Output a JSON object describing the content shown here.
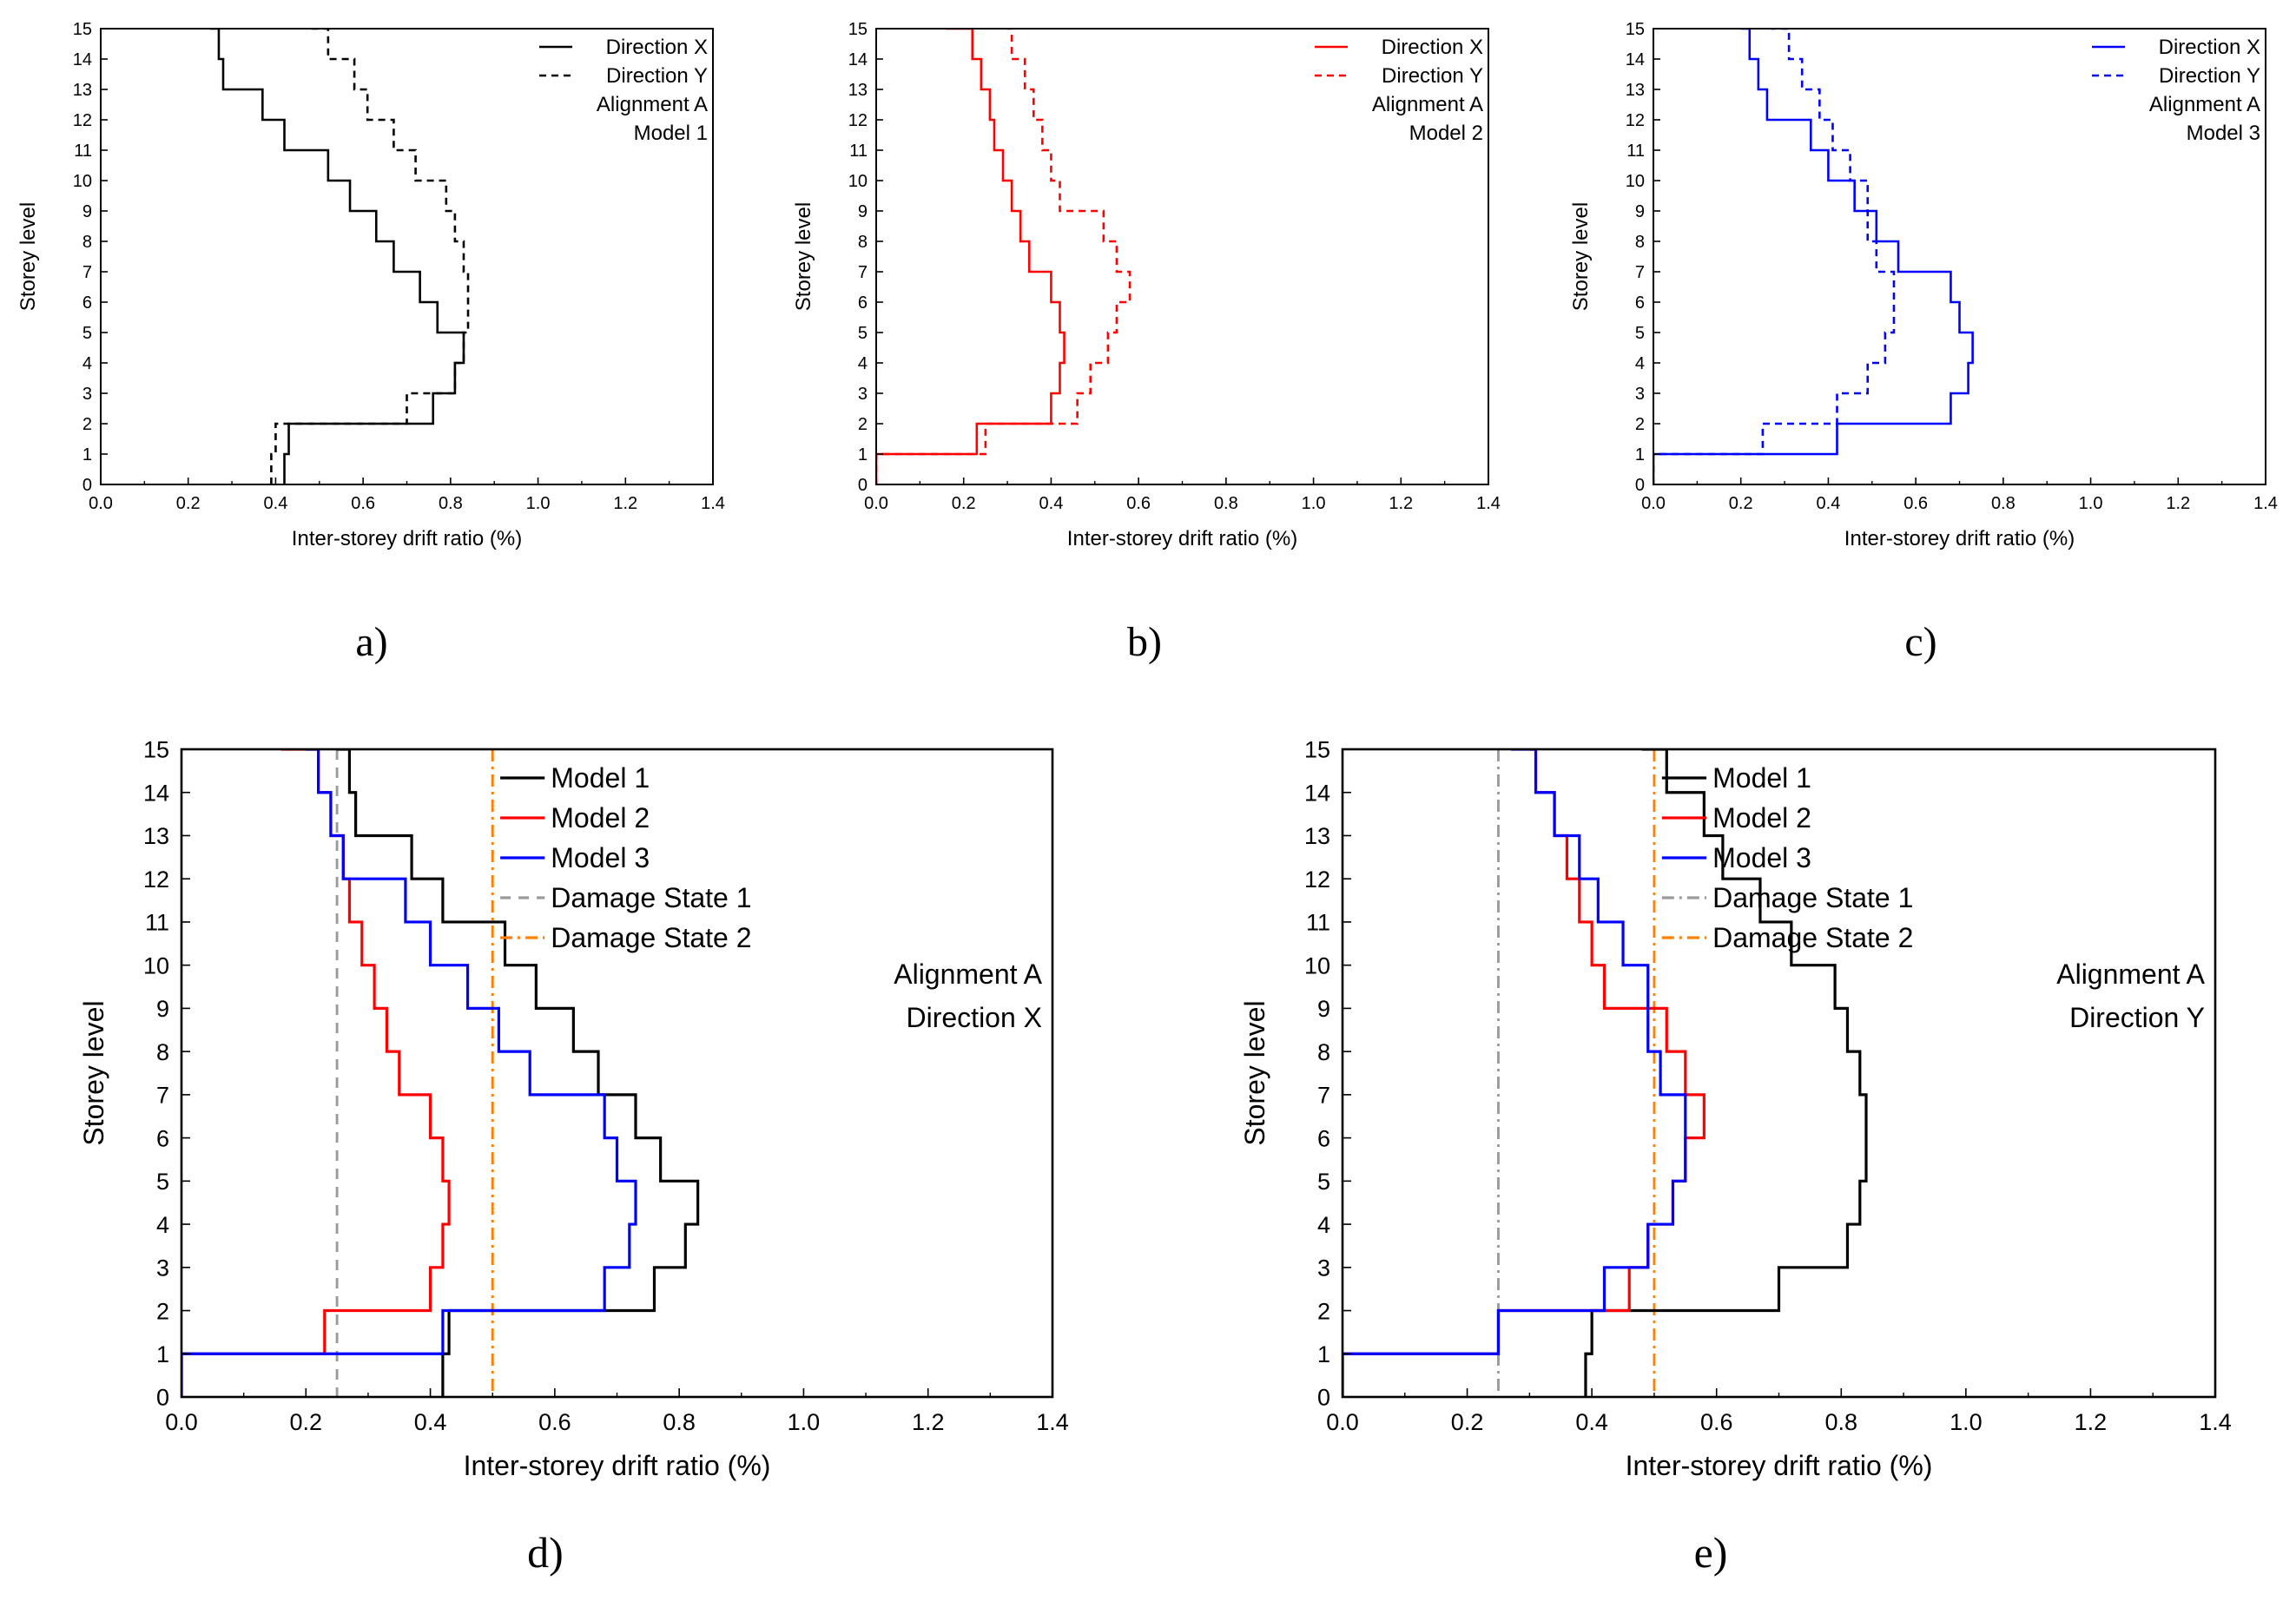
{
  "colors": {
    "black": "#000000",
    "red": "#ff0000",
    "blue": "#0000ff",
    "grey": "#9a9a9a",
    "orange": "#ff7f00"
  },
  "chart_data": [
    {
      "type": "line",
      "panel": "a",
      "caption": "a)",
      "xlabel": "Inter-storey drift ratio (%)",
      "ylabel": "Storey level",
      "xlim": [
        0,
        1.4
      ],
      "ylim": [
        0,
        15
      ],
      "xticks": [
        "0.0",
        "0.2",
        "0.4",
        "0.6",
        "0.8",
        "1.0",
        "1.2",
        "1.4"
      ],
      "yticks": [
        "0",
        "1",
        "2",
        "3",
        "4",
        "5",
        "6",
        "7",
        "8",
        "9",
        "10",
        "11",
        "12",
        "13",
        "14",
        "15"
      ],
      "grid": false,
      "legend_position": "top-right",
      "annotations": [
        "Alignment A",
        "Model 1"
      ],
      "series": [
        {
          "name": "Direction X",
          "color": "#000000",
          "style": "solid",
          "values": [
            0.43,
            0.76,
            0.81,
            0.83,
            0.77,
            0.73,
            0.67,
            0.63,
            0.57,
            0.52,
            0.42,
            0.37,
            0.28,
            0.27,
            0.25
          ],
          "start_x": 0.42
        },
        {
          "name": "Direction Y",
          "color": "#000000",
          "style": "dashed",
          "values": [
            0.4,
            0.7,
            0.81,
            0.83,
            0.84,
            0.84,
            0.83,
            0.81,
            0.79,
            0.72,
            0.67,
            0.61,
            0.58,
            0.52,
            0.48
          ],
          "start_x": 0.39
        }
      ]
    },
    {
      "type": "line",
      "panel": "b",
      "caption": "b)",
      "xlabel": "Inter-storey drift ratio (%)",
      "ylabel": "Storey level",
      "xlim": [
        0,
        1.4
      ],
      "ylim": [
        0,
        15
      ],
      "xticks": [
        "0.0",
        "0.2",
        "0.4",
        "0.6",
        "0.8",
        "1.0",
        "1.2",
        "1.4"
      ],
      "yticks": [
        "0",
        "1",
        "2",
        "3",
        "4",
        "5",
        "6",
        "7",
        "8",
        "9",
        "10",
        "11",
        "12",
        "13",
        "14",
        "15"
      ],
      "grid": false,
      "legend_position": "top-right",
      "annotations": [
        "Alignment A",
        "Model 2"
      ],
      "series": [
        {
          "name": "Direction X",
          "color": "#ff0000",
          "style": "solid",
          "values": [
            0.23,
            0.4,
            0.42,
            0.43,
            0.42,
            0.4,
            0.35,
            0.33,
            0.31,
            0.29,
            0.27,
            0.26,
            0.24,
            0.22,
            0.16
          ],
          "start_x": 0.0
        },
        {
          "name": "Direction Y",
          "color": "#ff0000",
          "style": "dashed",
          "values": [
            0.25,
            0.46,
            0.49,
            0.53,
            0.55,
            0.58,
            0.55,
            0.52,
            0.42,
            0.4,
            0.38,
            0.36,
            0.34,
            0.31,
            0.3
          ],
          "start_x": 0.0
        }
      ]
    },
    {
      "type": "line",
      "panel": "c",
      "caption": "c)",
      "xlabel": "Inter-storey drift ratio (%)",
      "ylabel": "Storey level",
      "xlim": [
        0,
        1.4
      ],
      "ylim": [
        0,
        15
      ],
      "xticks": [
        "0.0",
        "0.2",
        "0.4",
        "0.6",
        "0.8",
        "1.0",
        "1.2",
        "1.4"
      ],
      "yticks": [
        "0",
        "1",
        "2",
        "3",
        "4",
        "5",
        "6",
        "7",
        "8",
        "9",
        "10",
        "11",
        "12",
        "13",
        "14",
        "15"
      ],
      "grid": false,
      "legend_position": "top-right",
      "annotations": [
        "Alignment A",
        "Model 3"
      ],
      "series": [
        {
          "name": "Direction X",
          "color": "#0000ff",
          "style": "solid",
          "values": [
            0.42,
            0.68,
            0.72,
            0.73,
            0.7,
            0.68,
            0.56,
            0.51,
            0.46,
            0.4,
            0.36,
            0.26,
            0.24,
            0.22,
            0.2
          ],
          "start_x": 0.0
        },
        {
          "name": "Direction Y",
          "color": "#0000ff",
          "style": "dashed",
          "values": [
            0.25,
            0.42,
            0.49,
            0.53,
            0.55,
            0.55,
            0.51,
            0.49,
            0.49,
            0.45,
            0.41,
            0.38,
            0.34,
            0.31,
            0.27
          ],
          "start_x": 0.0
        }
      ]
    },
    {
      "type": "line",
      "panel": "d",
      "caption": "d)",
      "xlabel": "Inter-storey drift ratio (%)",
      "ylabel": "Storey level",
      "xlim": [
        0,
        1.4
      ],
      "ylim": [
        0,
        15
      ],
      "xticks": [
        "0.0",
        "0.2",
        "0.4",
        "0.6",
        "0.8",
        "1.0",
        "1.2",
        "1.4"
      ],
      "yticks": [
        "0",
        "1",
        "2",
        "3",
        "4",
        "5",
        "6",
        "7",
        "8",
        "9",
        "10",
        "11",
        "12",
        "13",
        "14",
        "15"
      ],
      "grid": false,
      "legend_position": "top-right",
      "annotations": [
        "Alignment A",
        "Direction X"
      ],
      "series": [
        {
          "name": "Model 1",
          "color": "#000000",
          "style": "solid",
          "values": [
            0.43,
            0.76,
            0.81,
            0.83,
            0.77,
            0.73,
            0.67,
            0.63,
            0.57,
            0.52,
            0.42,
            0.37,
            0.28,
            0.27,
            0.25
          ],
          "start_x": 0.42
        },
        {
          "name": "Model 2",
          "color": "#ff0000",
          "style": "solid",
          "values": [
            0.23,
            0.4,
            0.42,
            0.43,
            0.42,
            0.4,
            0.35,
            0.33,
            0.31,
            0.29,
            0.27,
            0.26,
            0.24,
            0.22,
            0.16
          ],
          "start_x": 0.0
        },
        {
          "name": "Model 3",
          "color": "#0000ff",
          "style": "solid",
          "values": [
            0.42,
            0.68,
            0.72,
            0.73,
            0.7,
            0.68,
            0.56,
            0.51,
            0.46,
            0.4,
            0.36,
            0.26,
            0.24,
            0.22,
            0.2
          ],
          "start_x": 0.0
        }
      ],
      "reference_lines": [
        {
          "name": "Damage State 1",
          "x": 0.25,
          "color": "#9a9a9a",
          "style": "dashed"
        },
        {
          "name": "Damage State 2",
          "x": 0.5,
          "color": "#ff7f00",
          "style": "dashdot"
        }
      ]
    },
    {
      "type": "line",
      "panel": "e",
      "caption": "e)",
      "xlabel": "Inter-storey drift ratio (%)",
      "ylabel": "Storey level",
      "xlim": [
        0,
        1.4
      ],
      "ylim": [
        0,
        15
      ],
      "xticks": [
        "0.0",
        "0.2",
        "0.4",
        "0.6",
        "0.8",
        "1.0",
        "1.2",
        "1.4"
      ],
      "yticks": [
        "0",
        "1",
        "2",
        "3",
        "4",
        "5",
        "6",
        "7",
        "8",
        "9",
        "10",
        "11",
        "12",
        "13",
        "14",
        "15"
      ],
      "grid": false,
      "legend_position": "top-right",
      "annotations": [
        "Alignment A",
        "Direction Y"
      ],
      "series": [
        {
          "name": "Model 1",
          "color": "#000000",
          "style": "solid",
          "values": [
            0.4,
            0.7,
            0.81,
            0.83,
            0.84,
            0.84,
            0.83,
            0.81,
            0.79,
            0.72,
            0.67,
            0.61,
            0.58,
            0.52,
            0.48
          ],
          "start_x": 0.39
        },
        {
          "name": "Model 2",
          "color": "#ff0000",
          "style": "solid",
          "values": [
            0.25,
            0.46,
            0.49,
            0.53,
            0.55,
            0.58,
            0.55,
            0.52,
            0.42,
            0.4,
            0.38,
            0.36,
            0.34,
            0.31,
            0.3
          ],
          "start_x": 0.0
        },
        {
          "name": "Model 3",
          "color": "#0000ff",
          "style": "solid",
          "values": [
            0.25,
            0.42,
            0.49,
            0.53,
            0.55,
            0.55,
            0.51,
            0.49,
            0.49,
            0.45,
            0.41,
            0.38,
            0.34,
            0.31,
            0.27
          ],
          "start_x": 0.0
        }
      ],
      "reference_lines": [
        {
          "name": "Damage State 1",
          "x": 0.25,
          "color": "#9a9a9a",
          "style": "dashdot"
        },
        {
          "name": "Damage State 2",
          "x": 0.5,
          "color": "#ff7f00",
          "style": "dashdot"
        }
      ]
    }
  ]
}
